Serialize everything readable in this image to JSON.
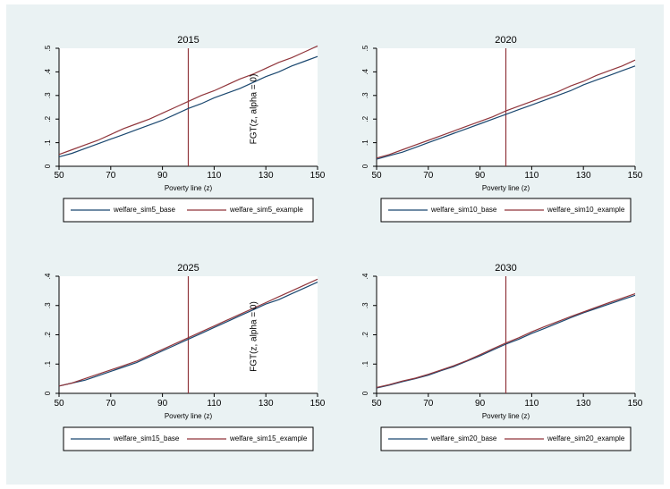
{
  "colors": {
    "outer_background": "#eaf2f3",
    "plot_background": "#ffffff",
    "base_series": "#1a476f",
    "example_series": "#90353b",
    "reference_line": "#90353b"
  },
  "chart_data": [
    {
      "type": "line",
      "title": "2015",
      "xlabel": "Poverty line (z)",
      "ylabel": "FGT(z, alpha = 0)",
      "xlim": [
        50,
        150
      ],
      "ylim": [
        0,
        0.5
      ],
      "xticks": [
        50,
        70,
        90,
        110,
        130,
        150
      ],
      "yticks": [
        0,
        0.1,
        0.2,
        0.3,
        0.4,
        0.5
      ],
      "ytick_labels": [
        "0",
        ".1",
        ".2",
        ".3",
        ".4",
        ".5"
      ],
      "reference_line_x": 100,
      "grid": false,
      "legend": "bottom",
      "series": [
        {
          "name": "welfare_sim5_base",
          "x": [
            50,
            55,
            60,
            65,
            70,
            75,
            80,
            85,
            90,
            95,
            100,
            105,
            110,
            115,
            120,
            125,
            130,
            135,
            140,
            145,
            150
          ],
          "values": [
            0.04,
            0.055,
            0.075,
            0.095,
            0.115,
            0.135,
            0.155,
            0.175,
            0.195,
            0.22,
            0.245,
            0.265,
            0.29,
            0.31,
            0.33,
            0.355,
            0.38,
            0.4,
            0.425,
            0.445,
            0.465
          ]
        },
        {
          "name": "welfare_sim5_example",
          "x": [
            50,
            55,
            60,
            65,
            70,
            75,
            80,
            85,
            90,
            95,
            100,
            105,
            110,
            115,
            120,
            125,
            130,
            135,
            140,
            145,
            150
          ],
          "values": [
            0.05,
            0.07,
            0.09,
            0.11,
            0.135,
            0.16,
            0.18,
            0.2,
            0.225,
            0.25,
            0.275,
            0.3,
            0.32,
            0.345,
            0.37,
            0.39,
            0.415,
            0.44,
            0.46,
            0.485,
            0.51
          ]
        }
      ]
    },
    {
      "type": "line",
      "title": "2020",
      "xlabel": "Poverty line (z)",
      "ylabel": "",
      "xlim": [
        50,
        150
      ],
      "ylim": [
        0,
        0.5
      ],
      "xticks": [
        50,
        70,
        90,
        110,
        130,
        150
      ],
      "yticks": [
        0,
        0.1,
        0.2,
        0.3,
        0.4,
        0.5
      ],
      "ytick_labels": [
        "0",
        ".1",
        ".2",
        ".3",
        ".4",
        ".5"
      ],
      "reference_line_x": 100,
      "grid": false,
      "legend": "bottom",
      "series": [
        {
          "name": "welfare_sim10_base",
          "x": [
            50,
            55,
            60,
            65,
            70,
            75,
            80,
            85,
            90,
            95,
            100,
            105,
            110,
            115,
            120,
            125,
            130,
            135,
            140,
            145,
            150
          ],
          "values": [
            0.03,
            0.045,
            0.06,
            0.08,
            0.1,
            0.12,
            0.14,
            0.16,
            0.18,
            0.2,
            0.22,
            0.24,
            0.26,
            0.28,
            0.3,
            0.32,
            0.345,
            0.365,
            0.385,
            0.405,
            0.425
          ]
        },
        {
          "name": "welfare_sim10_example",
          "x": [
            50,
            55,
            60,
            65,
            70,
            75,
            80,
            85,
            90,
            95,
            100,
            105,
            110,
            115,
            120,
            125,
            130,
            135,
            140,
            145,
            150
          ],
          "values": [
            0.035,
            0.05,
            0.07,
            0.09,
            0.11,
            0.13,
            0.15,
            0.17,
            0.19,
            0.21,
            0.235,
            0.255,
            0.275,
            0.295,
            0.315,
            0.34,
            0.36,
            0.385,
            0.405,
            0.425,
            0.45
          ]
        }
      ]
    },
    {
      "type": "line",
      "title": "2025",
      "xlabel": "Poverty line (z)",
      "ylabel": "FGT(z, alpha = 0)",
      "xlim": [
        50,
        150
      ],
      "ylim": [
        0,
        0.4
      ],
      "xticks": [
        50,
        70,
        90,
        110,
        130,
        150
      ],
      "yticks": [
        0,
        0.1,
        0.2,
        0.3,
        0.4
      ],
      "ytick_labels": [
        "0",
        ".1",
        ".2",
        ".3",
        ".4"
      ],
      "reference_line_x": 100,
      "grid": false,
      "legend": "bottom",
      "series": [
        {
          "name": "welfare_sim15_base",
          "x": [
            50,
            55,
            60,
            65,
            70,
            75,
            80,
            85,
            90,
            95,
            100,
            105,
            110,
            115,
            120,
            125,
            130,
            135,
            140,
            145,
            150
          ],
          "values": [
            0.025,
            0.035,
            0.045,
            0.06,
            0.075,
            0.09,
            0.105,
            0.125,
            0.145,
            0.165,
            0.185,
            0.205,
            0.225,
            0.245,
            0.265,
            0.285,
            0.305,
            0.32,
            0.34,
            0.36,
            0.38
          ]
        },
        {
          "name": "welfare_sim15_example",
          "x": [
            50,
            55,
            60,
            65,
            70,
            75,
            80,
            85,
            90,
            95,
            100,
            105,
            110,
            115,
            120,
            125,
            130,
            135,
            140,
            145,
            150
          ],
          "values": [
            0.025,
            0.035,
            0.05,
            0.065,
            0.08,
            0.095,
            0.11,
            0.13,
            0.15,
            0.17,
            0.19,
            0.21,
            0.23,
            0.25,
            0.27,
            0.29,
            0.31,
            0.33,
            0.35,
            0.37,
            0.39
          ]
        }
      ]
    },
    {
      "type": "line",
      "title": "2030",
      "xlabel": "Poverty line (z)",
      "ylabel": "",
      "xlim": [
        50,
        150
      ],
      "ylim": [
        0,
        0.4
      ],
      "xticks": [
        50,
        70,
        90,
        110,
        130,
        150
      ],
      "yticks": [
        0,
        0.1,
        0.2,
        0.3,
        0.4
      ],
      "ytick_labels": [
        "0",
        ".1",
        ".2",
        ".3",
        ".4"
      ],
      "reference_line_x": 100,
      "grid": false,
      "legend": "bottom",
      "series": [
        {
          "name": "welfare_sim20_base",
          "x": [
            50,
            55,
            60,
            65,
            70,
            75,
            80,
            85,
            90,
            95,
            100,
            105,
            110,
            115,
            120,
            125,
            130,
            135,
            140,
            145,
            150
          ],
          "values": [
            0.018,
            0.028,
            0.04,
            0.05,
            0.062,
            0.078,
            0.092,
            0.11,
            0.128,
            0.148,
            0.168,
            0.185,
            0.205,
            0.222,
            0.24,
            0.258,
            0.275,
            0.29,
            0.305,
            0.32,
            0.335
          ]
        },
        {
          "name": "welfare_sim20_example",
          "x": [
            50,
            55,
            60,
            65,
            70,
            75,
            80,
            85,
            90,
            95,
            100,
            105,
            110,
            115,
            120,
            125,
            130,
            135,
            140,
            145,
            150
          ],
          "values": [
            0.02,
            0.03,
            0.042,
            0.052,
            0.065,
            0.08,
            0.095,
            0.112,
            0.132,
            0.152,
            0.172,
            0.19,
            0.21,
            0.228,
            0.245,
            0.262,
            0.278,
            0.294,
            0.31,
            0.325,
            0.34
          ]
        }
      ]
    }
  ]
}
